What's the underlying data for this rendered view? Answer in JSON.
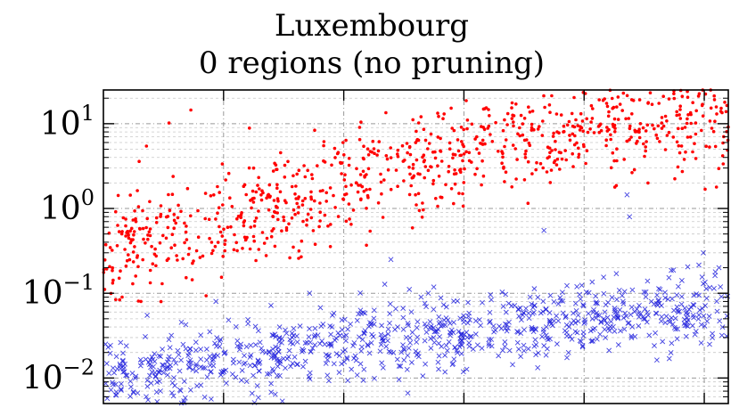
{
  "chart_data": {
    "type": "scatter",
    "title": [
      "Luxembourg",
      "0 regions (no pruning)"
    ],
    "xlabel": "",
    "ylabel": "",
    "x_ticks_count": 5,
    "x_range": [
      0,
      1000
    ],
    "y_scale": "log",
    "ylim": [
      0.005,
      25
    ],
    "y_ticks": [
      {
        "value": 0.01,
        "base": "10",
        "exp": "−2"
      },
      {
        "value": 0.1,
        "base": "10",
        "exp": "−1"
      },
      {
        "value": 1,
        "base": "10",
        "exp": "0"
      },
      {
        "value": 10,
        "base": "10",
        "exp": "1"
      }
    ],
    "grid": true,
    "legend": "none",
    "series": [
      {
        "marker": "dot",
        "color": "#ff0000",
        "trend": {
          "x": [
            0,
            150,
            250,
            400,
            550,
            700,
            850,
            1000
          ],
          "y": [
            0.3,
            0.55,
            1.0,
            2.2,
            4.0,
            7.0,
            10.0,
            15.0
          ]
        },
        "spread_decades": 0.32,
        "n": 900,
        "seed": 11,
        "outliers": [
          {
            "x": 140,
            "y": 14.5
          },
          {
            "x": 105,
            "y": 10.2
          },
          {
            "x": 452,
            "y": 13.5
          },
          {
            "x": 30,
            "y": 0.09
          },
          {
            "x": 60,
            "y": 0.08
          }
        ]
      },
      {
        "marker": "x",
        "color": "#2222dd",
        "trend": {
          "x": [
            0,
            150,
            250,
            400,
            550,
            700,
            850,
            1000
          ],
          "y": [
            0.011,
            0.014,
            0.018,
            0.026,
            0.034,
            0.045,
            0.06,
            0.065
          ]
        },
        "spread_decades": 0.22,
        "n": 900,
        "seed": 29,
        "outliers": [
          {
            "x": 838,
            "y": 1.45
          },
          {
            "x": 842,
            "y": 0.8
          },
          {
            "x": 705,
            "y": 0.55
          },
          {
            "x": 180,
            "y": 0.08
          },
          {
            "x": 330,
            "y": 0.1
          },
          {
            "x": 460,
            "y": 0.25
          },
          {
            "x": 520,
            "y": 0.1
          },
          {
            "x": 640,
            "y": 0.07
          },
          {
            "x": 960,
            "y": 0.3
          },
          {
            "x": 985,
            "y": 0.2
          },
          {
            "x": 920,
            "y": 0.12
          },
          {
            "x": 70,
            "y": 0.055
          }
        ]
      }
    ]
  }
}
